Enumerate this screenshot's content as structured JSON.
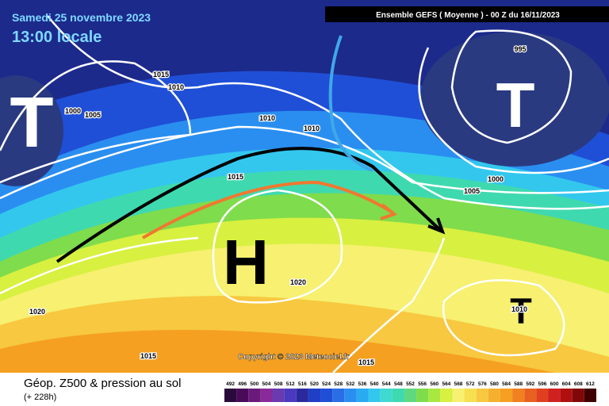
{
  "header": {
    "date": "Samedi 25 novembre 2023",
    "time": "13:00 locale",
    "run": "Ensemble GEFS  ( Moyenne )  - 00 Z du 16/11/2023"
  },
  "map": {
    "centers": [
      "T",
      "T",
      "H",
      "T"
    ],
    "isobar_labels": [
      "1015",
      "1010",
      "1000",
      "1005",
      "1010",
      "1010",
      "1015",
      "995",
      "1000",
      "1005",
      "1020",
      "1020",
      "1010",
      "1015",
      "1015"
    ],
    "copyright": "Copyright © 2023 Meteociel.fr"
  },
  "footer": {
    "title": "Géop. Z500 & pression au sol",
    "lead": "(+ 228h)"
  },
  "legend": {
    "values": [
      492,
      496,
      500,
      504,
      508,
      512,
      516,
      520,
      524,
      528,
      532,
      536,
      540,
      544,
      548,
      552,
      556,
      560,
      564,
      568,
      572,
      576,
      580,
      584,
      588,
      592,
      596,
      600,
      604,
      608,
      612
    ],
    "colors": [
      "#2a0a3a",
      "#4a0a5a",
      "#6a1a7a",
      "#8a2a9a",
      "#6a3ab0",
      "#4a3ac0",
      "#2a2a9c",
      "#1f3fc6",
      "#1f4fd6",
      "#2a6ee6",
      "#2a8ef0",
      "#2aaaf0",
      "#33c7ee",
      "#3fd9d0",
      "#3fd9b0",
      "#5fd980",
      "#7fdc4c",
      "#a8e840",
      "#d8f040",
      "#f7f070",
      "#f7e050",
      "#f7c840",
      "#f5b030",
      "#f5a020",
      "#f08020",
      "#e86020",
      "#e04020",
      "#d02020",
      "#b01010",
      "#800808",
      "#400000"
    ]
  }
}
